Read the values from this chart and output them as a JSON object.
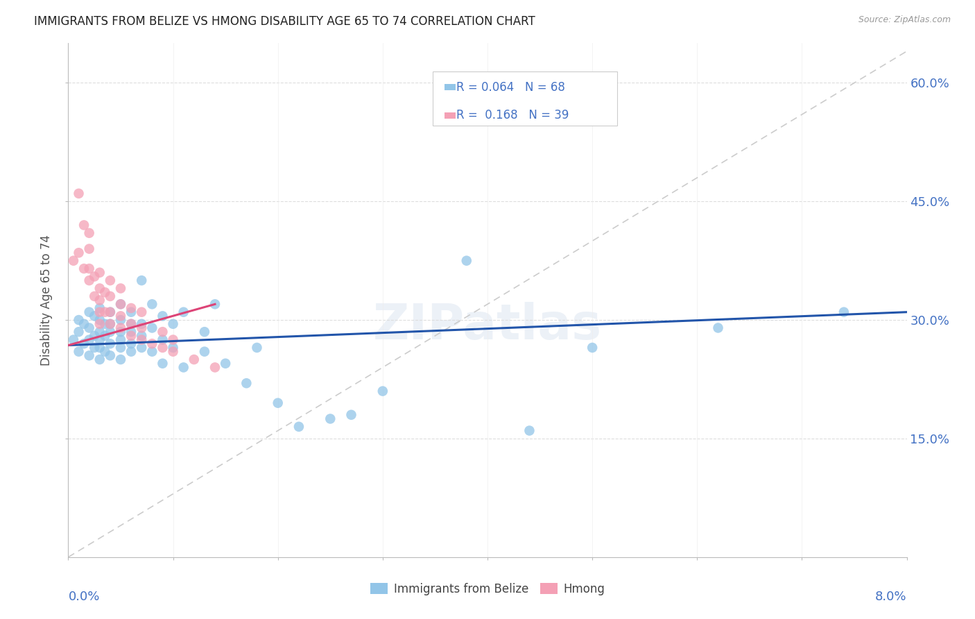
{
  "title": "IMMIGRANTS FROM BELIZE VS HMONG DISABILITY AGE 65 TO 74 CORRELATION CHART",
  "source": "Source: ZipAtlas.com",
  "ylabel": "Disability Age 65 to 74",
  "ytick_labels": [
    "15.0%",
    "30.0%",
    "45.0%",
    "60.0%"
  ],
  "ytick_values": [
    0.15,
    0.3,
    0.45,
    0.6
  ],
  "xlim": [
    0.0,
    0.08
  ],
  "ylim": [
    0.0,
    0.65
  ],
  "legend_belize": "Immigrants from Belize",
  "legend_hmong": "Hmong",
  "R_belize": 0.064,
  "N_belize": 68,
  "R_hmong": 0.168,
  "N_hmong": 39,
  "color_belize": "#92C5E8",
  "color_hmong": "#F4A0B5",
  "color_trend_blue": "#2255AA",
  "color_trend_pink": "#DD4477",
  "color_text_blue": "#4472C4",
  "color_diag": "#CCCCCC",
  "belize_x": [
    0.0005,
    0.001,
    0.001,
    0.001,
    0.0015,
    0.0015,
    0.002,
    0.002,
    0.002,
    0.002,
    0.0025,
    0.0025,
    0.0025,
    0.003,
    0.003,
    0.003,
    0.003,
    0.003,
    0.003,
    0.0035,
    0.0035,
    0.0035,
    0.004,
    0.004,
    0.004,
    0.004,
    0.004,
    0.005,
    0.005,
    0.005,
    0.005,
    0.005,
    0.005,
    0.006,
    0.006,
    0.006,
    0.006,
    0.006,
    0.007,
    0.007,
    0.007,
    0.007,
    0.008,
    0.008,
    0.008,
    0.009,
    0.009,
    0.009,
    0.01,
    0.01,
    0.011,
    0.011,
    0.013,
    0.013,
    0.014,
    0.015,
    0.017,
    0.018,
    0.02,
    0.022,
    0.025,
    0.027,
    0.03,
    0.038,
    0.044,
    0.05,
    0.062,
    0.074
  ],
  "belize_y": [
    0.275,
    0.26,
    0.285,
    0.3,
    0.27,
    0.295,
    0.255,
    0.275,
    0.29,
    0.31,
    0.265,
    0.28,
    0.305,
    0.25,
    0.265,
    0.275,
    0.285,
    0.3,
    0.315,
    0.26,
    0.28,
    0.295,
    0.255,
    0.27,
    0.285,
    0.295,
    0.31,
    0.25,
    0.265,
    0.275,
    0.285,
    0.3,
    0.32,
    0.26,
    0.27,
    0.285,
    0.295,
    0.31,
    0.265,
    0.28,
    0.295,
    0.35,
    0.26,
    0.29,
    0.32,
    0.245,
    0.275,
    0.305,
    0.265,
    0.295,
    0.24,
    0.31,
    0.26,
    0.285,
    0.32,
    0.245,
    0.22,
    0.265,
    0.195,
    0.165,
    0.175,
    0.18,
    0.21,
    0.375,
    0.16,
    0.265,
    0.29,
    0.31
  ],
  "hmong_x": [
    0.0005,
    0.001,
    0.001,
    0.0015,
    0.0015,
    0.002,
    0.002,
    0.002,
    0.002,
    0.0025,
    0.0025,
    0.003,
    0.003,
    0.003,
    0.003,
    0.003,
    0.0035,
    0.0035,
    0.004,
    0.004,
    0.004,
    0.004,
    0.005,
    0.005,
    0.005,
    0.005,
    0.006,
    0.006,
    0.006,
    0.007,
    0.007,
    0.007,
    0.008,
    0.009,
    0.009,
    0.01,
    0.01,
    0.012,
    0.014
  ],
  "hmong_y": [
    0.375,
    0.46,
    0.385,
    0.365,
    0.42,
    0.35,
    0.365,
    0.39,
    0.41,
    0.33,
    0.355,
    0.295,
    0.31,
    0.325,
    0.34,
    0.36,
    0.31,
    0.335,
    0.295,
    0.31,
    0.33,
    0.35,
    0.29,
    0.305,
    0.32,
    0.34,
    0.28,
    0.295,
    0.315,
    0.275,
    0.29,
    0.31,
    0.27,
    0.265,
    0.285,
    0.26,
    0.275,
    0.25,
    0.24
  ]
}
